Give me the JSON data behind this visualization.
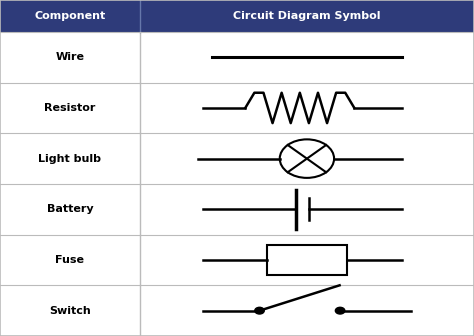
{
  "title": "Component",
  "col2_title": "Circuit Diagram Symbol",
  "header_bg": "#2e3b7a",
  "header_fg": "#ffffff",
  "border_color": "#bbbbbb",
  "text_color": "#000000",
  "symbol_color": "#000000",
  "components": [
    "Wire",
    "Resistor",
    "Light bulb",
    "Battery",
    "Fuse",
    "Switch"
  ],
  "figsize": [
    4.74,
    3.36
  ],
  "dpi": 100,
  "col_split": 0.295
}
